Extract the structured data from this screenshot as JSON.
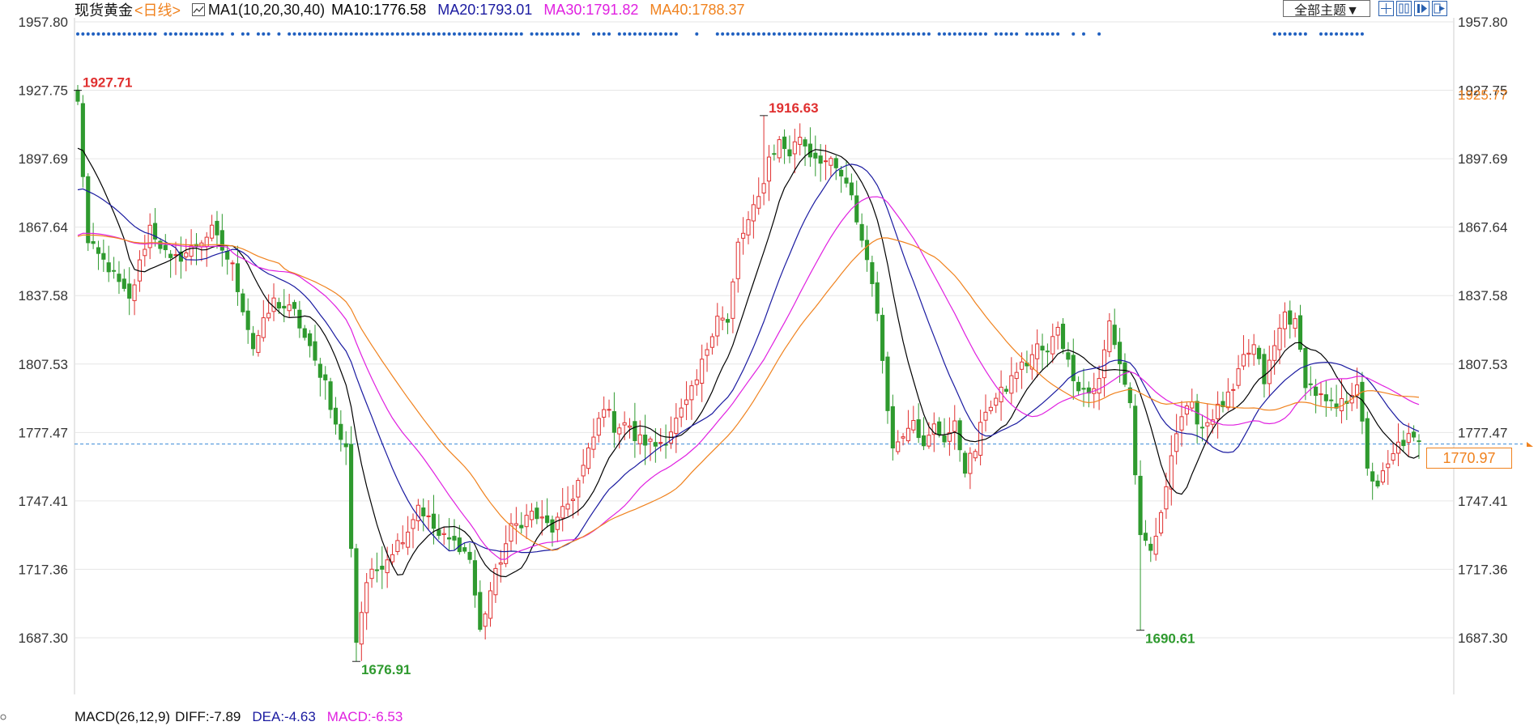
{
  "header": {
    "instrument": "现货黄金",
    "period": "<日线>",
    "indicator": "MA1(10,20,30,40)",
    "ma10": "MA10:1776.58",
    "ma20": "MA20:1793.01",
    "ma30": "MA30:1791.82",
    "ma40": "MA40:1788.37",
    "theme_button": "全部主题▼",
    "tool_icons": [
      "crosshair-icon",
      "columns-icon",
      "play-icon",
      "exit-icon"
    ]
  },
  "footer": {
    "macd": "MACD(26,12,9)",
    "diff": "DIFF:-7.89",
    "dea": "DEA:-4.63",
    "macd_value": "MACD:-6.53"
  },
  "current_price": "1770.97",
  "colors": {
    "up": "#e03030",
    "down": "#2f9a2f",
    "ma10": "#000000",
    "ma20": "#1a1aa0",
    "ma30": "#e020e0",
    "ma40": "#f0821e",
    "dots": "#2060c0",
    "grid": "#e6e6e6"
  },
  "chart_data": {
    "type": "candlestick",
    "y_ticks": [
      "1957.80",
      "1927.75",
      "1897.69",
      "1867.64",
      "1837.58",
      "1807.53",
      "1777.47",
      "1747.41",
      "1717.36",
      "1687.30"
    ],
    "right_ticks": [
      "1957.80",
      "1927.75",
      "1897.69",
      "1867.64",
      "1837.58",
      "1807.53",
      "1777.47",
      "1747.41",
      "1717.36",
      "1687.30"
    ],
    "right_orange_label": "1925.77",
    "ylim": [
      1670,
      1960
    ],
    "extremes": [
      {
        "label": "1927.71",
        "value": 1927.71,
        "index": 0,
        "color": "#e03030"
      },
      {
        "label": "1676.91",
        "value": 1676.91,
        "index": 54,
        "color": "#2f9a2f"
      },
      {
        "label": "1916.63",
        "value": 1916.63,
        "index": 133,
        "color": "#e03030"
      },
      {
        "label": "1690.61",
        "value": 1690.61,
        "index": 206,
        "color": "#2f9a2f"
      }
    ],
    "seed_closes": [
      [
        0,
        1922
      ],
      [
        2,
        1860
      ],
      [
        6,
        1850
      ],
      [
        10,
        1835
      ],
      [
        14,
        1868
      ],
      [
        18,
        1852
      ],
      [
        22,
        1858
      ],
      [
        26,
        1866
      ],
      [
        30,
        1850
      ],
      [
        34,
        1815
      ],
      [
        38,
        1835
      ],
      [
        42,
        1830
      ],
      [
        46,
        1808
      ],
      [
        48,
        1800
      ],
      [
        50,
        1780
      ],
      [
        52,
        1770
      ],
      [
        54,
        1686
      ],
      [
        56,
        1712
      ],
      [
        60,
        1723
      ],
      [
        64,
        1735
      ],
      [
        66,
        1746
      ],
      [
        70,
        1732
      ],
      [
        74,
        1728
      ],
      [
        76,
        1722
      ],
      [
        78,
        1690
      ],
      [
        80,
        1708
      ],
      [
        82,
        1722
      ],
      [
        84,
        1735
      ],
      [
        88,
        1742
      ],
      [
        92,
        1735
      ],
      [
        94,
        1742
      ],
      [
        96,
        1750
      ],
      [
        98,
        1762
      ],
      [
        100,
        1775
      ],
      [
        102,
        1790
      ],
      [
        104,
        1780
      ],
      [
        106,
        1782
      ],
      [
        108,
        1775
      ],
      [
        112,
        1772
      ],
      [
        114,
        1775
      ],
      [
        118,
        1790
      ],
      [
        120,
        1800
      ],
      [
        122,
        1815
      ],
      [
        124,
        1830
      ],
      [
        126,
        1825
      ],
      [
        128,
        1860
      ],
      [
        130,
        1870
      ],
      [
        132,
        1880
      ],
      [
        134,
        1898
      ],
      [
        136,
        1905
      ],
      [
        138,
        1900
      ],
      [
        140,
        1908
      ],
      [
        142,
        1900
      ],
      [
        144,
        1898
      ],
      [
        146,
        1895
      ],
      [
        148,
        1890
      ],
      [
        150,
        1880
      ],
      [
        152,
        1862
      ],
      [
        154,
        1845
      ],
      [
        156,
        1810
      ],
      [
        158,
        1770
      ],
      [
        160,
        1778
      ],
      [
        162,
        1785
      ],
      [
        164,
        1770
      ],
      [
        166,
        1780
      ],
      [
        168,
        1775
      ],
      [
        170,
        1780
      ],
      [
        172,
        1762
      ],
      [
        174,
        1770
      ],
      [
        176,
        1788
      ],
      [
        178,
        1792
      ],
      [
        180,
        1797
      ],
      [
        182,
        1805
      ],
      [
        184,
        1808
      ],
      [
        186,
        1815
      ],
      [
        188,
        1812
      ],
      [
        190,
        1825
      ],
      [
        192,
        1808
      ],
      [
        194,
        1798
      ],
      [
        196,
        1795
      ],
      [
        198,
        1800
      ],
      [
        200,
        1826
      ],
      [
        202,
        1808
      ],
      [
        204,
        1790
      ],
      [
        206,
        1730
      ],
      [
        208,
        1725
      ],
      [
        210,
        1740
      ],
      [
        212,
        1770
      ],
      [
        214,
        1785
      ],
      [
        216,
        1788
      ],
      [
        218,
        1780
      ],
      [
        220,
        1785
      ],
      [
        222,
        1790
      ],
      [
        224,
        1795
      ],
      [
        226,
        1810
      ],
      [
        228,
        1815
      ],
      [
        230,
        1800
      ],
      [
        232,
        1815
      ],
      [
        234,
        1830
      ],
      [
        236,
        1825
      ],
      [
        238,
        1800
      ],
      [
        240,
        1795
      ],
      [
        242,
        1790
      ],
      [
        244,
        1788
      ],
      [
        246,
        1792
      ],
      [
        248,
        1800
      ],
      [
        250,
        1760
      ],
      [
        252,
        1755
      ],
      [
        254,
        1762
      ],
      [
        256,
        1772
      ],
      [
        258,
        1775
      ],
      [
        260,
        1772
      ]
    ],
    "n_candles": 261,
    "ma_periods": [
      10,
      20,
      30,
      40
    ],
    "ma_start_values": [
      1900,
      1882,
      1862,
      1862
    ],
    "dot_runs": [
      [
        0,
        15
      ],
      [
        17,
        28
      ],
      [
        30,
        30
      ],
      [
        32,
        33
      ],
      [
        35,
        37
      ],
      [
        39,
        39
      ],
      [
        41,
        86
      ],
      [
        88,
        97
      ],
      [
        100,
        103
      ],
      [
        105,
        116
      ],
      [
        120,
        120
      ],
      [
        124,
        165
      ],
      [
        167,
        176
      ],
      [
        178,
        182
      ],
      [
        184,
        190
      ],
      [
        193,
        193
      ],
      [
        195,
        195
      ],
      [
        198,
        198
      ],
      [
        232,
        238
      ],
      [
        241,
        249
      ]
    ]
  }
}
